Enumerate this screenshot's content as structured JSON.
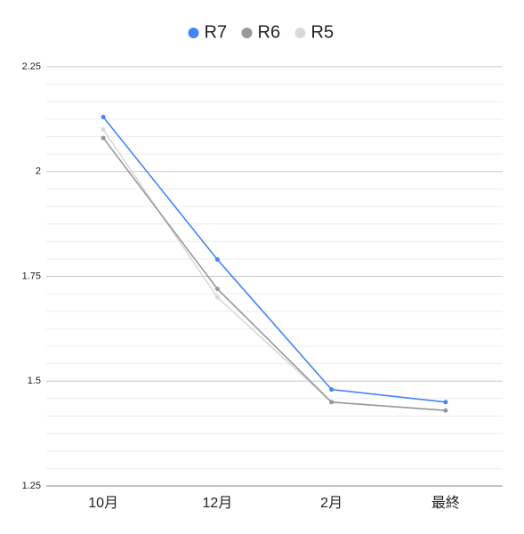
{
  "chart_data": {
    "type": "line",
    "categories": [
      "10月",
      "12月",
      "2月",
      "最終"
    ],
    "series": [
      {
        "name": "R7",
        "color": "#4285f4",
        "values": [
          2.13,
          1.79,
          1.48,
          1.45
        ]
      },
      {
        "name": "R6",
        "color": "#999999",
        "values": [
          2.08,
          1.72,
          1.45,
          1.43
        ]
      },
      {
        "name": "R5",
        "color": "#d9d9d9",
        "values": [
          2.1,
          1.7,
          1.45,
          1.43
        ]
      }
    ],
    "ylim": [
      1.25,
      2.25
    ],
    "yticks": [
      1.25,
      1.5,
      1.75,
      2,
      2.25
    ],
    "grid": true,
    "minor_grid_lines_per_interval": 5,
    "legend": "top"
  }
}
